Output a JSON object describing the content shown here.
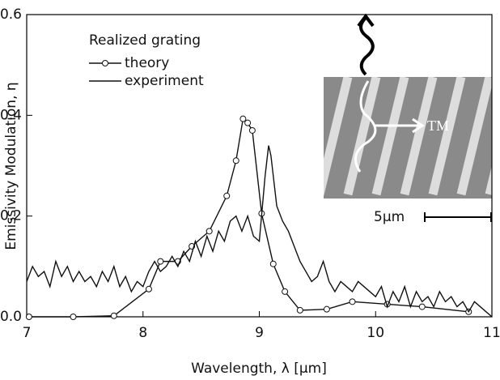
{
  "chart_data": {
    "type": "line",
    "xlabel": "Wavelength, λ [μm]",
    "ylabel": "Emissivity Modulation, η",
    "legend_title": "Realized grating",
    "legend": "upper left",
    "annotations": [
      "TM",
      "5μm"
    ],
    "xlim": [
      7,
      11
    ],
    "xticks": [
      7,
      8,
      9,
      10,
      11
    ],
    "ylim": [
      0,
      0.6
    ],
    "yticks": [
      {
        "value": 0,
        "label": "0.0"
      },
      0.2,
      0.4,
      0.6
    ],
    "series": [
      {
        "name": "theory",
        "color": "#111111",
        "marker": "circle",
        "x": [
          7.02,
          7.4,
          7.75,
          8.05,
          8.15,
          8.3,
          8.42,
          8.57,
          8.72,
          8.8,
          8.86,
          8.9,
          8.94,
          9.02,
          9.12,
          9.22,
          9.35,
          9.58,
          9.8,
          10.1,
          10.4,
          10.8
        ],
        "values": [
          0.0,
          0.0,
          0.002,
          0.055,
          0.11,
          0.11,
          0.14,
          0.17,
          0.24,
          0.31,
          0.393,
          0.385,
          0.37,
          0.205,
          0.105,
          0.05,
          0.013,
          0.015,
          0.03,
          0.025,
          0.02,
          0.01
        ]
      },
      {
        "name": "experiment",
        "color": "#111111",
        "x": [
          7.0,
          7.05,
          7.1,
          7.15,
          7.2,
          7.25,
          7.3,
          7.35,
          7.4,
          7.45,
          7.5,
          7.55,
          7.6,
          7.65,
          7.7,
          7.75,
          7.8,
          7.85,
          7.9,
          7.95,
          8.0,
          8.05,
          8.1,
          8.15,
          8.2,
          8.25,
          8.3,
          8.35,
          8.4,
          8.45,
          8.5,
          8.55,
          8.6,
          8.65,
          8.7,
          8.75,
          8.8,
          8.85,
          8.9,
          8.95,
          9.0,
          9.05,
          9.08,
          9.1,
          9.15,
          9.2,
          9.25,
          9.3,
          9.35,
          9.4,
          9.45,
          9.5,
          9.55,
          9.6,
          9.65,
          9.7,
          9.75,
          9.8,
          9.85,
          9.9,
          9.95,
          10.0,
          10.05,
          10.1,
          10.15,
          10.2,
          10.25,
          10.3,
          10.35,
          10.4,
          10.45,
          10.5,
          10.55,
          10.6,
          10.65,
          10.7,
          10.75,
          10.8,
          10.85,
          10.9,
          10.95,
          11.0
        ],
        "values": [
          0.07,
          0.1,
          0.08,
          0.09,
          0.06,
          0.11,
          0.08,
          0.1,
          0.07,
          0.09,
          0.07,
          0.08,
          0.06,
          0.09,
          0.07,
          0.1,
          0.06,
          0.08,
          0.05,
          0.07,
          0.06,
          0.09,
          0.11,
          0.09,
          0.1,
          0.12,
          0.1,
          0.13,
          0.11,
          0.15,
          0.12,
          0.16,
          0.13,
          0.17,
          0.15,
          0.19,
          0.2,
          0.17,
          0.2,
          0.16,
          0.15,
          0.28,
          0.34,
          0.32,
          0.22,
          0.19,
          0.17,
          0.14,
          0.11,
          0.09,
          0.07,
          0.08,
          0.11,
          0.07,
          0.05,
          0.07,
          0.06,
          0.05,
          0.07,
          0.06,
          0.05,
          0.04,
          0.06,
          0.02,
          0.05,
          0.03,
          0.06,
          0.02,
          0.05,
          0.03,
          0.04,
          0.02,
          0.05,
          0.03,
          0.04,
          0.02,
          0.03,
          0.01,
          0.03,
          0.02,
          0.01,
          0.0
        ]
      }
    ]
  }
}
